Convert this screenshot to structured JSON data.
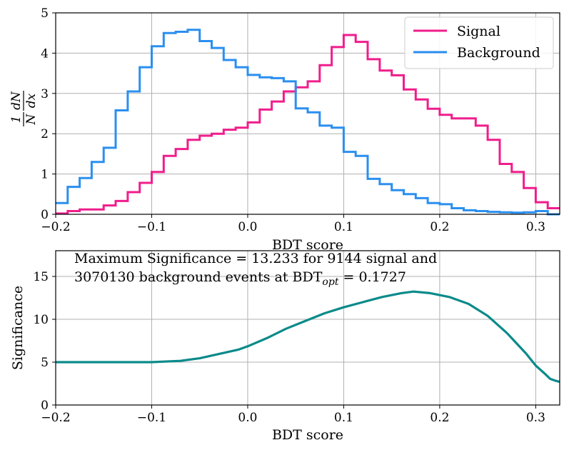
{
  "chart_data": [
    {
      "type": "step",
      "name": "bdt-distribution",
      "xlabel": "BDT score",
      "ylabel_top": "1",
      "ylabel_num": "dN",
      "ylabel_den": "N dx",
      "xlim": [
        -0.2,
        0.325
      ],
      "ylim": [
        0,
        5
      ],
      "x_ticks": [
        -0.2,
        -0.1,
        0.0,
        0.1,
        0.2,
        0.3
      ],
      "x_tick_labels": [
        "−0.2",
        "−0.1",
        "0.0",
        "0.1",
        "0.2",
        "0.3"
      ],
      "y_ticks": [
        0,
        1,
        2,
        3,
        4,
        5
      ],
      "y_tick_labels": [
        "0",
        "1",
        "2",
        "3",
        "4",
        "5"
      ],
      "grid": true,
      "legend_position": "top-right",
      "bin_edges": [
        -0.2,
        -0.1875,
        -0.175,
        -0.1625,
        -0.15,
        -0.1375,
        -0.125,
        -0.1125,
        -0.1,
        -0.0875,
        -0.075,
        -0.0625,
        -0.05,
        -0.0375,
        -0.025,
        -0.0125,
        0.0,
        0.0125,
        0.025,
        0.0375,
        0.05,
        0.0625,
        0.075,
        0.0875,
        0.1,
        0.1125,
        0.125,
        0.1375,
        0.15,
        0.1625,
        0.175,
        0.1875,
        0.2,
        0.2125,
        0.225,
        0.2375,
        0.25,
        0.2625,
        0.275,
        0.2875,
        0.3,
        0.3125,
        0.325
      ],
      "series": [
        {
          "name": "Signal",
          "color": "#f01d8c",
          "values": [
            0.02,
            0.08,
            0.12,
            0.12,
            0.22,
            0.33,
            0.55,
            0.78,
            1.05,
            1.45,
            1.62,
            1.85,
            1.95,
            2.0,
            2.1,
            2.15,
            2.28,
            2.6,
            2.8,
            3.05,
            3.15,
            3.3,
            3.7,
            4.15,
            4.45,
            4.28,
            3.85,
            3.57,
            3.45,
            3.1,
            2.85,
            2.62,
            2.47,
            2.38,
            2.38,
            2.2,
            1.85,
            1.25,
            1.05,
            0.65,
            0.3,
            0.15
          ]
        },
        {
          "name": "Background",
          "color": "#2a8fef",
          "values": [
            0.28,
            0.68,
            0.9,
            1.3,
            1.65,
            2.58,
            3.05,
            3.65,
            4.17,
            4.5,
            4.53,
            4.58,
            4.3,
            4.13,
            3.83,
            3.65,
            3.46,
            3.4,
            3.38,
            3.3,
            2.63,
            2.53,
            2.2,
            2.15,
            1.55,
            1.45,
            0.88,
            0.75,
            0.6,
            0.5,
            0.4,
            0.28,
            0.25,
            0.15,
            0.1,
            0.08,
            0.06,
            0.05,
            0.04,
            0.05,
            0.08,
            0.0
          ]
        }
      ]
    },
    {
      "type": "line",
      "name": "significance-curve",
      "xlabel": "BDT score",
      "ylabel": "Significance",
      "xlim": [
        -0.2,
        0.325
      ],
      "ylim": [
        0,
        18
      ],
      "x_ticks": [
        -0.2,
        -0.1,
        0.0,
        0.1,
        0.2,
        0.3
      ],
      "x_tick_labels": [
        "−0.2",
        "−0.1",
        "0.0",
        "0.1",
        "0.2",
        "0.3"
      ],
      "y_ticks": [
        0,
        5,
        10,
        15
      ],
      "y_tick_labels": [
        "0",
        "5",
        "10",
        "15"
      ],
      "grid": true,
      "annotation_line1": "Maximum Significance = 13.233 for 9144 signal and",
      "annotation_line2_prefix": "3070130 background events at BDT",
      "annotation_line2_sub": "opt",
      "annotation_line2_suffix": " = 0.1727",
      "series": [
        {
          "name": "Significance",
          "color": "#0a8a8a",
          "x": [
            -0.2,
            -0.15,
            -0.1,
            -0.07,
            -0.05,
            -0.03,
            -0.01,
            0.0,
            0.02,
            0.04,
            0.06,
            0.08,
            0.1,
            0.12,
            0.14,
            0.16,
            0.1727,
            0.19,
            0.21,
            0.23,
            0.25,
            0.27,
            0.28,
            0.29,
            0.3,
            0.31,
            0.315,
            0.32,
            0.325
          ],
          "y": [
            5.0,
            5.0,
            5.0,
            5.15,
            5.45,
            5.95,
            6.45,
            6.85,
            7.8,
            8.9,
            9.8,
            10.7,
            11.4,
            12.0,
            12.6,
            13.05,
            13.23,
            13.05,
            12.6,
            11.8,
            10.4,
            8.4,
            7.2,
            6.0,
            4.6,
            3.6,
            3.05,
            2.85,
            2.7
          ]
        }
      ]
    }
  ]
}
